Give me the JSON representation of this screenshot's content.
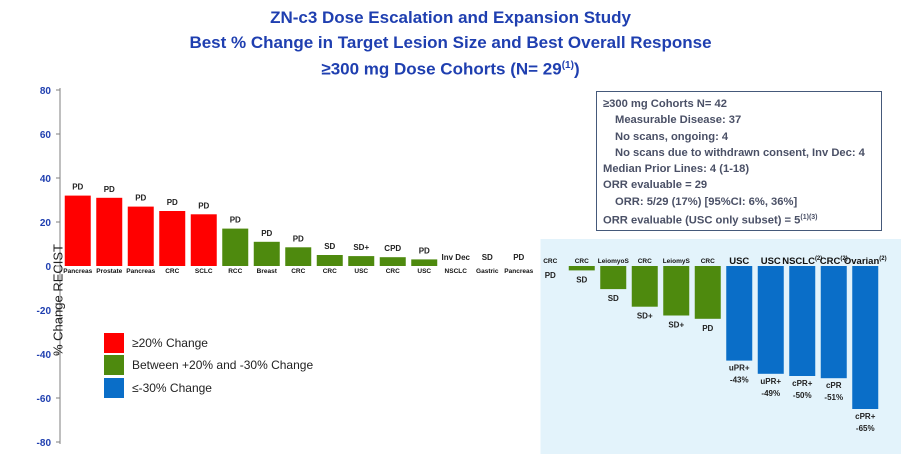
{
  "titles": {
    "line1": "ZN-c3 Dose Escalation and Expansion Study",
    "line2": "Best % Change in Target Lesion Size and Best Overall Response",
    "line3": "≥300 mg Dose Cohorts (N= 29",
    "line3_sup": "(1)",
    "line3_end": ")"
  },
  "infobox": {
    "l1": "≥300 mg Cohorts N= 42",
    "l2": "Measurable Disease:  37",
    "l3": "No scans, ongoing: 4",
    "l4": "No scans due to withdrawn consent, Inv Dec: 4",
    "l5": "Median Prior Lines: 4 (1-18)",
    "l6": "ORR evaluable = 29",
    "l7": "ORR: 5/29 (17%) [95%CI: 6%, 36%]",
    "l8": "ORR evaluable (USC only subset) = 5",
    "l8_sup": "(1)(3)"
  },
  "legend": [
    {
      "label": "≥20% Change",
      "color": "#ff0000"
    },
    {
      "label": "Between +20% and -30% Change",
      "color": "#4e8a0e"
    },
    {
      "label": "≤-30% Change",
      "color": "#0a6ec8"
    }
  ],
  "chart_data": {
    "type": "bar",
    "ylabel": "% Change RECIST",
    "ylim": [
      -80,
      80
    ],
    "yticks": [
      80,
      60,
      40,
      20,
      0,
      -20,
      -40,
      -60,
      -80
    ],
    "colors": {
      "red": "#ff0000",
      "green": "#4e8a0e",
      "blue": "#0a6ec8",
      "shade": "#e3f3fb"
    },
    "bars": [
      {
        "category": "Pancreas",
        "value": 32,
        "response": "PD",
        "color": "red"
      },
      {
        "category": "Prostate",
        "value": 31,
        "response": "PD",
        "color": "red"
      },
      {
        "category": "Pancreas",
        "value": 27,
        "response": "PD",
        "color": "red"
      },
      {
        "category": "CRC",
        "value": 25,
        "response": "PD",
        "color": "red"
      },
      {
        "category": "SCLC",
        "value": 23.5,
        "response": "PD",
        "color": "red"
      },
      {
        "category": "RCC",
        "value": 17,
        "response": "PD",
        "color": "green"
      },
      {
        "category": "Breast",
        "value": 11,
        "response": "PD",
        "color": "green"
      },
      {
        "category": "CRC",
        "value": 8.5,
        "response": "PD",
        "color": "green"
      },
      {
        "category": "CRC",
        "value": 5,
        "response": "SD",
        "color": "green"
      },
      {
        "category": "USC",
        "value": 4.5,
        "response": "SD+",
        "color": "green"
      },
      {
        "category": "CRC",
        "value": 4,
        "response": "CPD",
        "color": "green"
      },
      {
        "category": "USC",
        "value": 3,
        "response": "PD",
        "color": "green"
      },
      {
        "category": "NSCLC",
        "value": 0,
        "response": "Inv Dec",
        "color": "green"
      },
      {
        "category": "Gastric",
        "value": 0,
        "response": "SD",
        "color": "green"
      },
      {
        "category": "Pancreas",
        "value": 0,
        "response": "PD",
        "color": "green"
      },
      {
        "category": "CRC",
        "value": 0,
        "response": "PD",
        "color": "green"
      },
      {
        "category": "CRC",
        "value": -2,
        "response": "SD",
        "color": "green"
      },
      {
        "category": "LeiomyoS",
        "value": -10.5,
        "response": "SD",
        "color": "green"
      },
      {
        "category": "CRC",
        "value": -18.5,
        "response": "SD+",
        "color": "green"
      },
      {
        "category": "LeiomyS",
        "value": -22.5,
        "response": "SD+",
        "color": "green"
      },
      {
        "category": "CRC",
        "value": -24,
        "response": "PD",
        "color": "green"
      },
      {
        "category": "USC",
        "value": -43,
        "response": "uPR+",
        "pct": "-43%",
        "color": "blue"
      },
      {
        "category": "USC",
        "value": -49,
        "response": "uPR+",
        "pct": "-49%",
        "color": "blue"
      },
      {
        "category": "NSCLC",
        "category_sup": "(2)",
        "value": -50,
        "response": "cPR+",
        "pct": "-50%",
        "color": "blue"
      },
      {
        "category": "CRC",
        "category_sup": "(2)",
        "value": -51,
        "response": "cPR",
        "pct": "-51%",
        "color": "blue"
      },
      {
        "category": "Ovarian",
        "category_sup": "(2)",
        "value": -65,
        "response": "cPR+",
        "pct": "-65%",
        "color": "blue"
      }
    ]
  }
}
